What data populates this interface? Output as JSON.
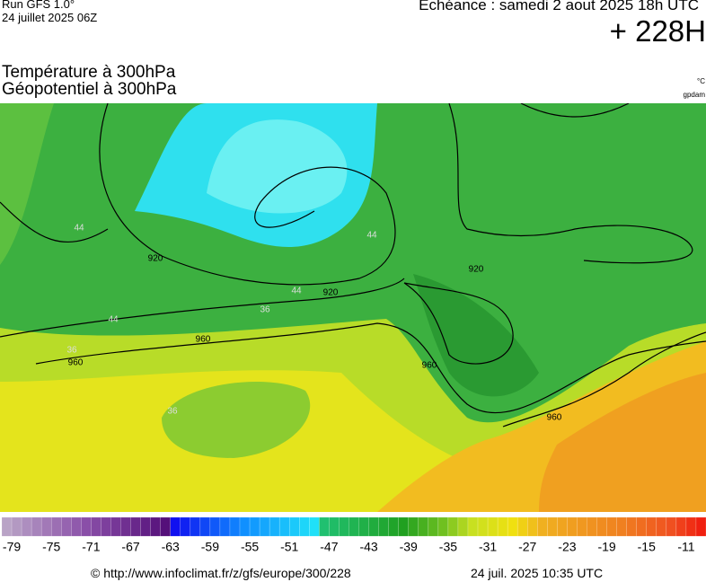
{
  "header": {
    "run": "Run GFS 1.0°",
    "run_date": "24 juillet 2025 06Z",
    "valid": "Echéance : samedi 2 aout 2025 18h UTC",
    "lead": "+ 228H",
    "title_line1": "Température à 300hPa",
    "title_line2": "Géopotentiel à 300hPa",
    "unit_temp": "°C",
    "unit_geo": "gpdam"
  },
  "map": {
    "contour_labels": [
      "960",
      "960",
      "960",
      "960",
      "920",
      "920",
      "920",
      "44",
      "44",
      "44",
      "44",
      "36",
      "36",
      "36"
    ]
  },
  "colorbar": {
    "lim": [
      -80,
      -9
    ],
    "stops": [
      [
        -80,
        "#b9a3c6"
      ],
      [
        -72,
        "#8a4fa8"
      ],
      [
        -64,
        "#55107a"
      ],
      [
        -63,
        "#1010f0"
      ],
      [
        -56,
        "#1090ff"
      ],
      [
        -49,
        "#20e0f8"
      ],
      [
        -48,
        "#20c070"
      ],
      [
        -40,
        "#20a020"
      ],
      [
        -36,
        "#70c020"
      ],
      [
        -33,
        "#c8e020"
      ],
      [
        -29,
        "#f0e010"
      ],
      [
        -26,
        "#f0b020"
      ],
      [
        -18,
        "#f08020"
      ],
      [
        -13,
        "#f05020"
      ],
      [
        -10,
        "#f02010"
      ]
    ],
    "ticks": [
      -79,
      -75,
      -71,
      -67,
      -63,
      -59,
      -55,
      -51,
      -47,
      -43,
      -39,
      -35,
      -31,
      -27,
      -23,
      -19,
      -15,
      -11
    ]
  },
  "footer": {
    "source": "© http://www.infoclimat.fr/z/gfs/europe/300/228",
    "generated": "24 juil. 2025 10:35 UTC"
  }
}
